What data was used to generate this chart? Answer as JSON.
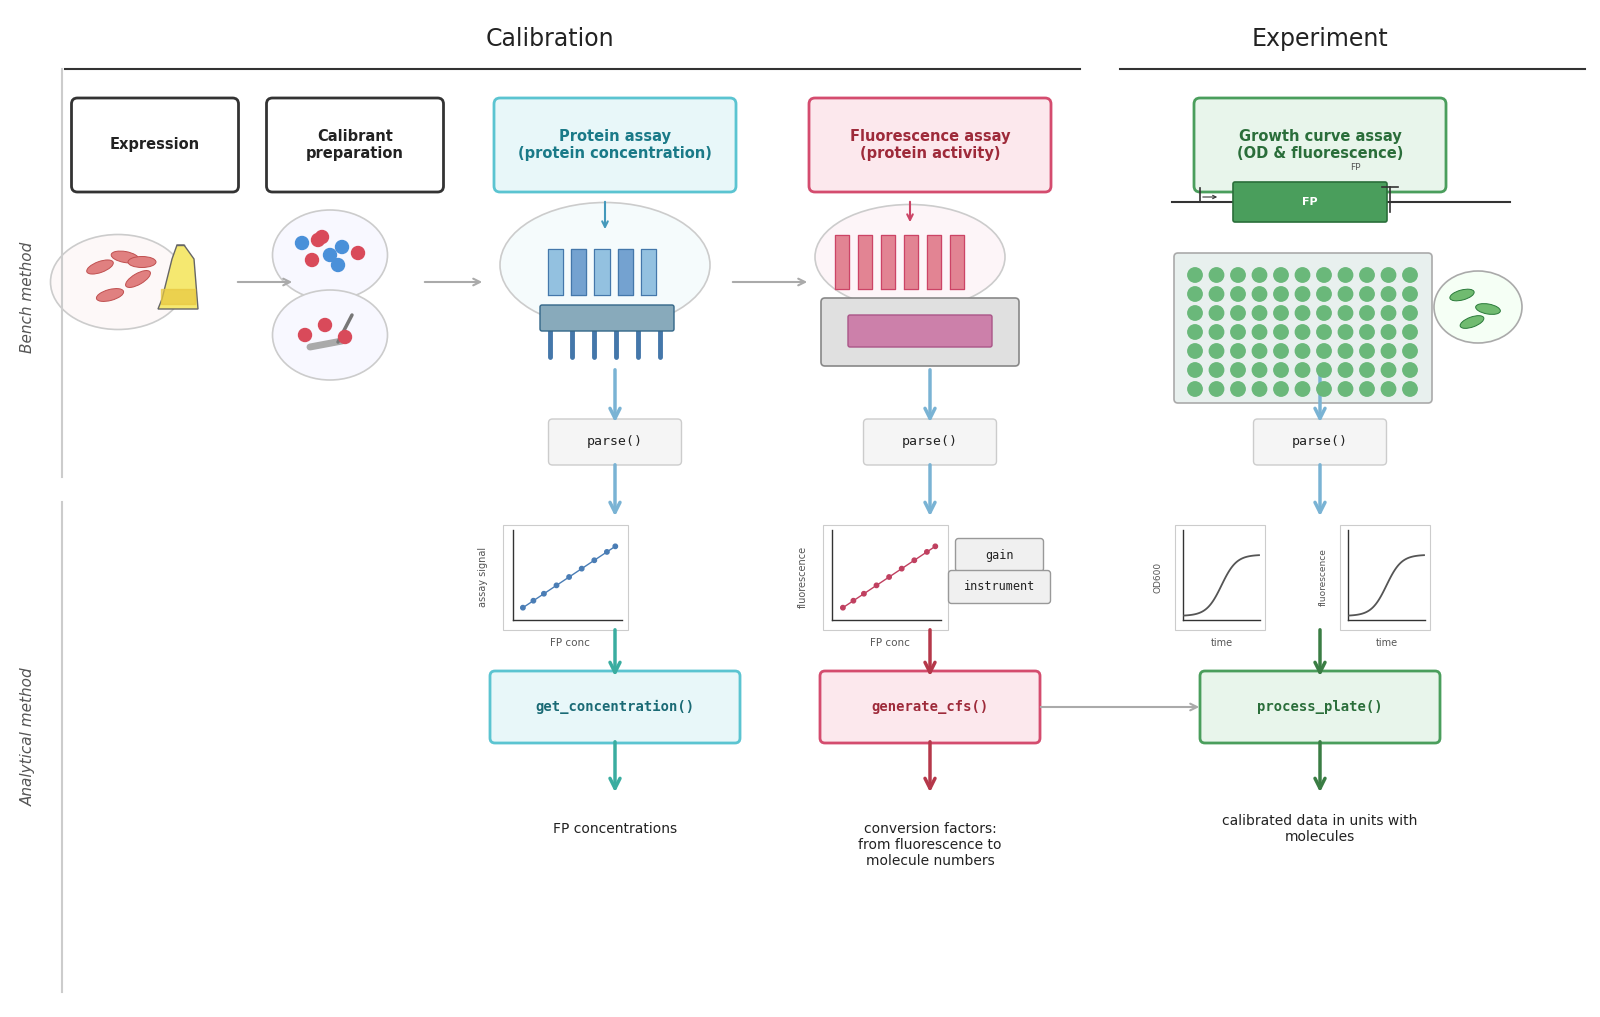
{
  "title_calibration": "Calibration",
  "title_experiment": "Experiment",
  "label_bench": "Bench method",
  "label_analytical": "Analytical method",
  "box_expression": "Expression",
  "box_calibrant": "Calibrant\npreparation",
  "box_protein_assay": "Protein assay\n(protein concentration)",
  "box_fluorescence_assay": "Fluorescence assay\n(protein activity)",
  "box_growth_curve": "Growth curve assay\n(OD & fluorescence)",
  "box_get_concentration": "get_concentration()",
  "box_generate_cfs": "generate_cfs()",
  "box_process_plate": "process_plate()",
  "parse_label": "parse()",
  "label_fp_conc1": "FP conc",
  "label_fp_conc2": "FP conc",
  "label_assay_signal": "assay signal",
  "label_fluorescence1": "fluorescence",
  "label_fluorescence2": "fluorescence",
  "label_od600": "OD600",
  "label_time": "time",
  "label_gain": "gain",
  "label_instrument": "instrument",
  "output_fp_conc": "FP concentrations",
  "output_conversion": "conversion factors:\nfrom fluorescence to\nmolecule numbers",
  "output_calibrated": "calibrated data in units with\nmolecules",
  "color_protein_assay_border": "#5bc4d1",
  "color_protein_assay_fill": "#e8f7f9",
  "color_fluorescence_border": "#d44c6e",
  "color_fluorescence_fill": "#fce8ed",
  "color_growth_border": "#4a9e5c",
  "color_growth_fill": "#e8f5eb",
  "color_get_concentration_border": "#5bc4d1",
  "color_get_concentration_fill": "#e8f7f9",
  "color_generate_cfs_border": "#d44c6e",
  "color_generate_cfs_fill": "#fce8ed",
  "color_process_plate_border": "#4a9e5c",
  "color_process_plate_fill": "#e8f5eb",
  "color_arrow_blue": "#7ab3d4",
  "color_arrow_teal": "#3aada0",
  "color_arrow_red": "#b5384a",
  "color_arrow_green": "#3a7d44",
  "color_arrow_gray": "#aaaaaa",
  "color_line": "#333333",
  "bg_color": "#ffffff"
}
